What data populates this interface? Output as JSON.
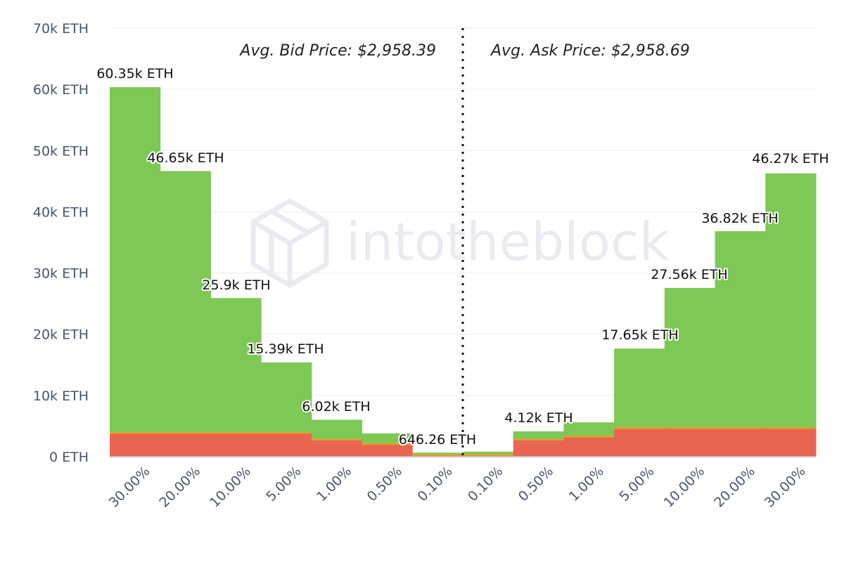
{
  "watermark": {
    "text": "intotheblock"
  },
  "annotations": {
    "bid": "Avg. Bid Price: $2,958.39",
    "ask": "Avg. Ask Price: $2,958.69"
  },
  "colors": {
    "green": "#7ec855",
    "red": "#e86651",
    "orange_line": "#f0a020",
    "grid": "#eeeeee",
    "axis": "#d0d4dc"
  },
  "chart_data": {
    "type": "bar",
    "stacked": true,
    "categories": [
      "30.00%",
      "20.00%",
      "10.00%",
      "5.00%",
      "1.00%",
      "0.50%",
      "0.10%",
      "0.10%",
      "0.50%",
      "1.00%",
      "5.00%",
      "10.00%",
      "20.00%",
      "30.00%"
    ],
    "sides": [
      "bid",
      "bid",
      "bid",
      "bid",
      "bid",
      "bid",
      "bid",
      "ask",
      "ask",
      "ask",
      "ask",
      "ask",
      "ask",
      "ask"
    ],
    "series": [
      {
        "color": "#e86651",
        "values": [
          3800,
          3800,
          3800,
          3800,
          2700,
          2000,
          200,
          200,
          2700,
          3200,
          4600,
          4600,
          4600,
          4600
        ]
      },
      {
        "color": "#7ec855",
        "values": [
          56550,
          42850,
          22100,
          11590,
          3320,
          1800,
          446,
          600,
          1420,
          2400,
          13050,
          22960,
          32220,
          41670
        ]
      }
    ],
    "totals": [
      60350,
      46650,
      25900,
      15390,
      6020,
      3800,
      646,
      800,
      4120,
      5600,
      17650,
      27560,
      36820,
      46270
    ],
    "data_labels": [
      "60.35k ETH",
      "46.65k ETH",
      "25.9k ETH",
      "15.39k ETH",
      "6.02k ETH",
      "",
      "646.26 ETH",
      "",
      "4.12k ETH",
      "",
      "17.65k ETH",
      "27.56k ETH",
      "36.82k ETH",
      "46.27k ETH"
    ],
    "yticks": [
      "0 ETH",
      "10k ETH",
      "20k ETH",
      "30k ETH",
      "40k ETH",
      "50k ETH",
      "60k ETH",
      "70k ETH"
    ],
    "ylim": [
      0,
      70000
    ],
    "grid": true,
    "legend": false
  }
}
